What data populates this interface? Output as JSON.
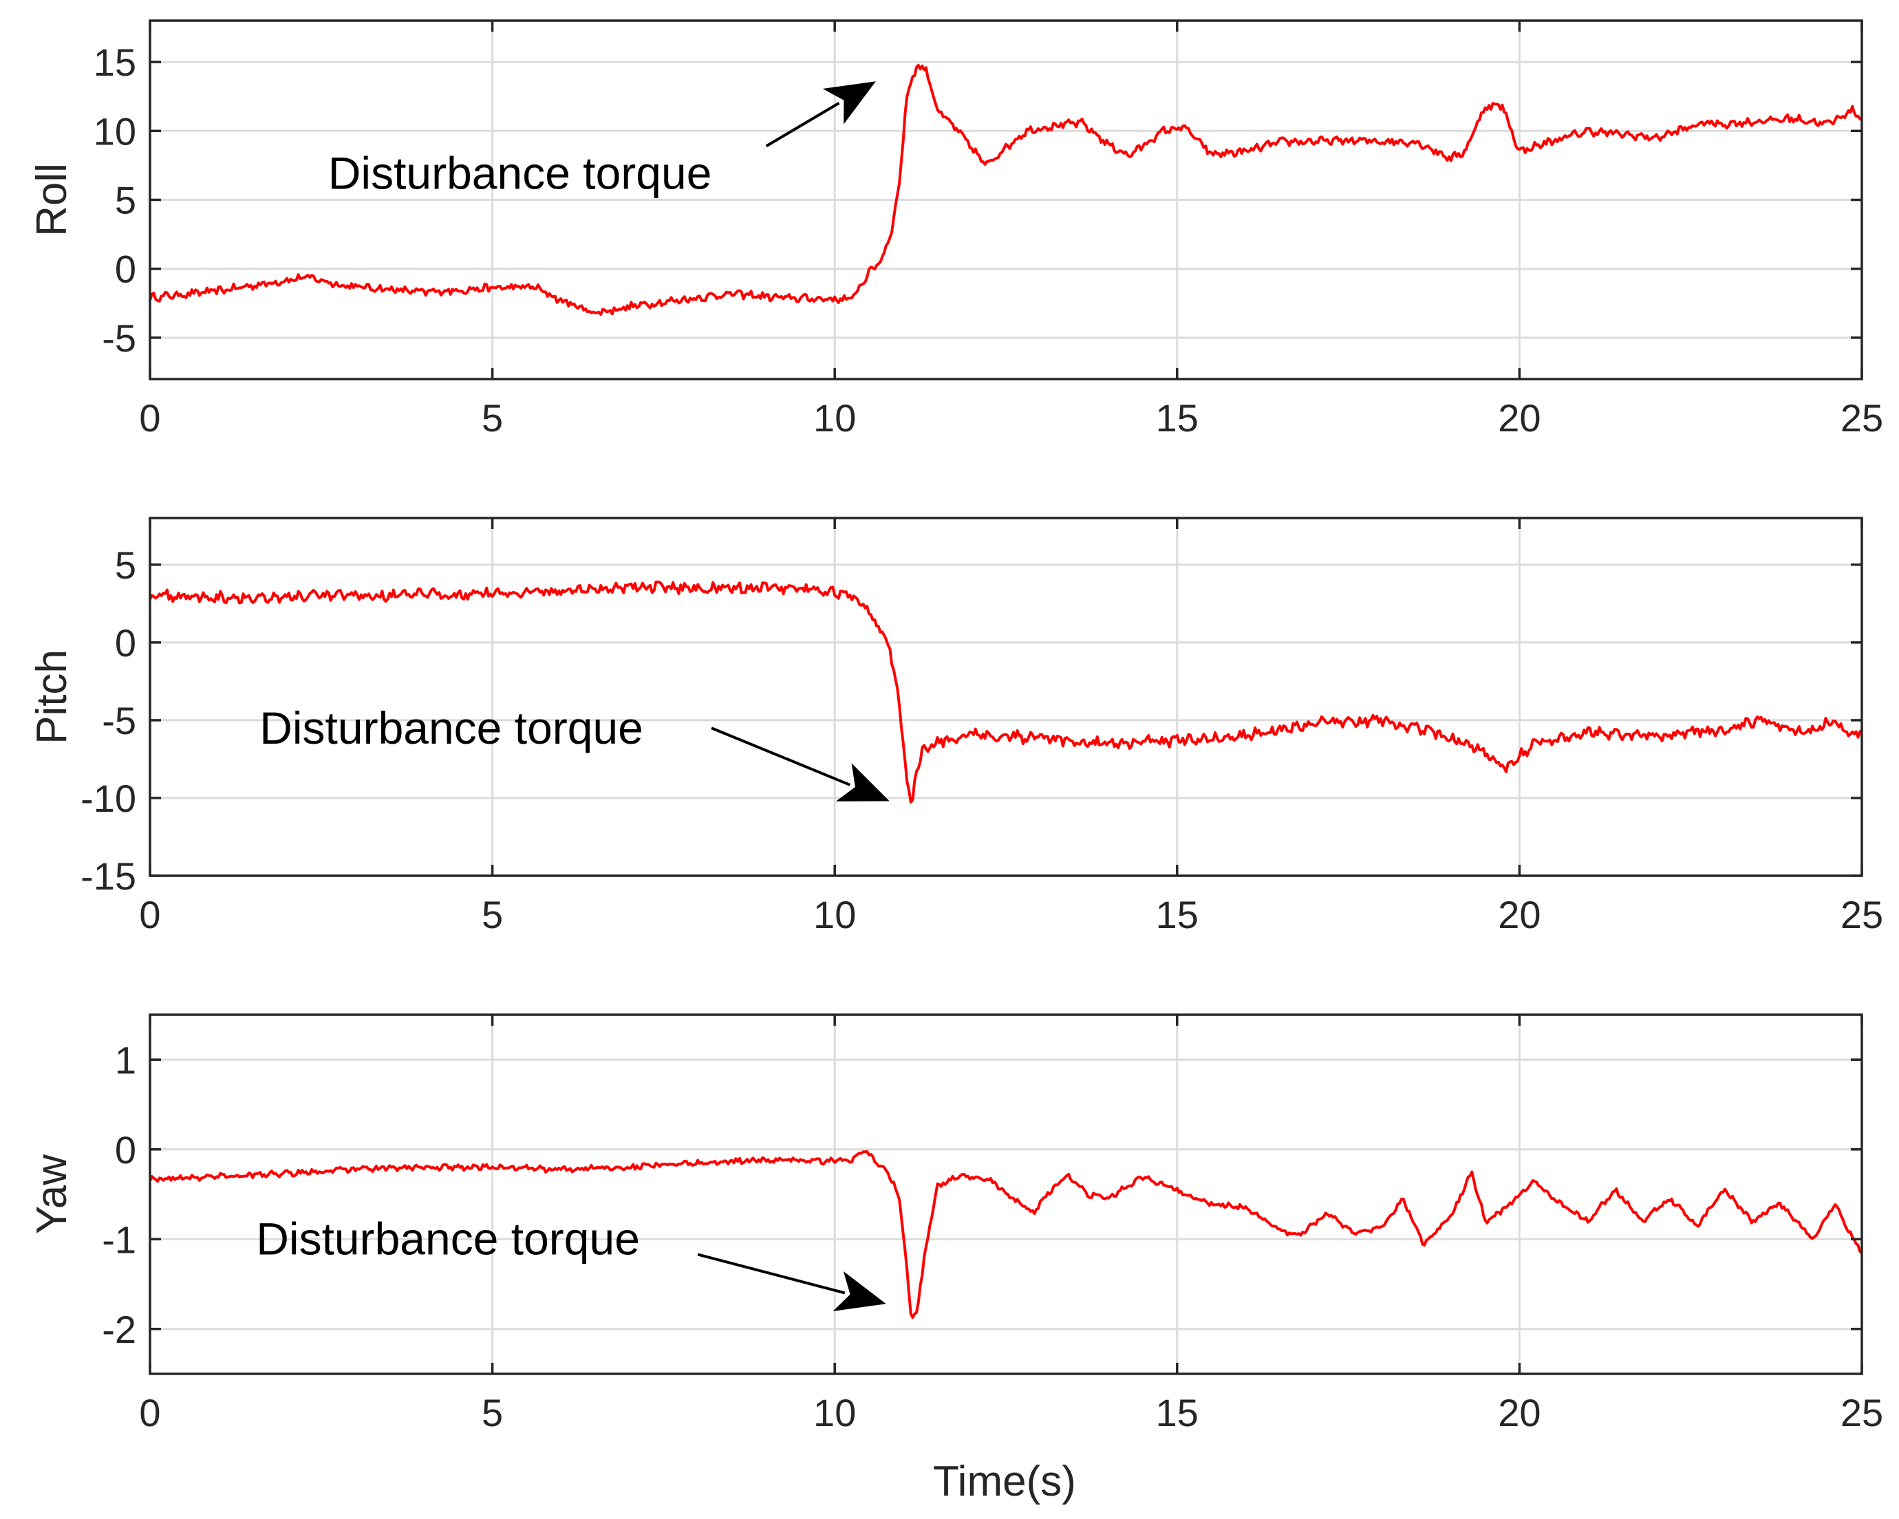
{
  "series_color": "#ff0000",
  "xlabel": "Time(s)",
  "chart_data": [
    {
      "type": "line",
      "ylabel": "Roll",
      "xlim": [
        0,
        25
      ],
      "ylim": [
        -8,
        18
      ],
      "xticks": [
        0,
        5,
        10,
        15,
        20,
        25
      ],
      "yticks": [
        -5,
        0,
        5,
        10,
        15
      ],
      "ytick_labels": [
        "-5",
        "0",
        "5",
        "10",
        "15"
      ],
      "annotation": {
        "text": "Disturbance torque",
        "text_at": [
          2.6,
          5.8
        ],
        "tail": [
          9.0,
          8.9
        ],
        "tip": [
          10.6,
          13.6
        ]
      },
      "series": [
        {
          "name": "Roll",
          "noise": 0.45,
          "points": [
            [
              0,
              -2.1
            ],
            [
              1.0,
              -1.6
            ],
            [
              2.3,
              -0.6
            ],
            [
              2.8,
              -1.2
            ],
            [
              4.0,
              -1.7
            ],
            [
              5.0,
              -1.4
            ],
            [
              5.6,
              -1.3
            ],
            [
              6.0,
              -2.3
            ],
            [
              6.5,
              -3.2
            ],
            [
              7.2,
              -2.6
            ],
            [
              8.5,
              -1.8
            ],
            [
              9.2,
              -2.1
            ],
            [
              10.0,
              -2.2
            ],
            [
              10.25,
              -2.2
            ],
            [
              10.4,
              -1.0
            ],
            [
              10.55,
              0.0
            ],
            [
              10.7,
              0.8
            ],
            [
              10.85,
              3.2
            ],
            [
              10.95,
              6.5
            ],
            [
              11.05,
              12.5
            ],
            [
              11.2,
              14.8
            ],
            [
              11.35,
              14.3
            ],
            [
              11.5,
              11.5
            ],
            [
              11.8,
              10.0
            ],
            [
              12.0,
              8.8
            ],
            [
              12.2,
              7.5
            ],
            [
              12.45,
              8.6
            ],
            [
              12.8,
              10.0
            ],
            [
              13.1,
              10.3
            ],
            [
              13.6,
              10.6
            ],
            [
              14.0,
              9.0
            ],
            [
              14.3,
              8.2
            ],
            [
              14.8,
              10.0
            ],
            [
              15.1,
              10.3
            ],
            [
              15.5,
              8.3
            ],
            [
              16.0,
              8.5
            ],
            [
              16.5,
              9.2
            ],
            [
              17.5,
              9.3
            ],
            [
              18.5,
              9.2
            ],
            [
              19.0,
              8.0
            ],
            [
              19.2,
              8.5
            ],
            [
              19.5,
              11.8
            ],
            [
              19.75,
              11.8
            ],
            [
              20.0,
              8.5
            ],
            [
              20.3,
              9.0
            ],
            [
              21.0,
              10.0
            ],
            [
              22.0,
              9.5
            ],
            [
              22.7,
              10.6
            ],
            [
              23.0,
              10.5
            ],
            [
              24.0,
              10.9
            ],
            [
              24.5,
              10.5
            ],
            [
              24.85,
              11.5
            ],
            [
              25.0,
              10.9
            ]
          ]
        }
      ]
    },
    {
      "type": "line",
      "ylabel": "Pitch",
      "xlim": [
        0,
        25
      ],
      "ylim": [
        -15,
        8
      ],
      "xticks": [
        0,
        5,
        10,
        15,
        20,
        25
      ],
      "yticks": [
        -15,
        -10,
        -5,
        0,
        5
      ],
      "ytick_labels": [
        "-15",
        "-10",
        "-5",
        "0",
        "5"
      ],
      "annotation": {
        "text": "Disturbance torque",
        "text_at": [
          1.6,
          -6.5
        ],
        "tail": [
          8.2,
          -5.5
        ],
        "tip": [
          10.8,
          -10.2
        ]
      },
      "series": [
        {
          "name": "Pitch",
          "noise": 0.55,
          "points": [
            [
              0,
              3.0
            ],
            [
              1.5,
              2.9
            ],
            [
              3.0,
              3.0
            ],
            [
              4.5,
              3.1
            ],
            [
              6.0,
              3.3
            ],
            [
              7.0,
              3.6
            ],
            [
              8.0,
              3.5
            ],
            [
              9.0,
              3.5
            ],
            [
              10.0,
              3.3
            ],
            [
              10.3,
              2.8
            ],
            [
              10.5,
              2.0
            ],
            [
              10.65,
              0.8
            ],
            [
              10.8,
              -0.3
            ],
            [
              10.9,
              -2.5
            ],
            [
              10.98,
              -5.5
            ],
            [
              11.05,
              -8.5
            ],
            [
              11.12,
              -10.5
            ],
            [
              11.2,
              -8.0
            ],
            [
              11.3,
              -6.8
            ],
            [
              11.5,
              -6.5
            ],
            [
              12.0,
              -5.8
            ],
            [
              13.0,
              -6.2
            ],
            [
              14.0,
              -6.5
            ],
            [
              15.0,
              -6.3
            ],
            [
              16.0,
              -6.0
            ],
            [
              17.0,
              -5.2
            ],
            [
              18.0,
              -5.0
            ],
            [
              18.5,
              -5.5
            ],
            [
              19.0,
              -6.2
            ],
            [
              19.5,
              -7.0
            ],
            [
              19.8,
              -8.2
            ],
            [
              20.2,
              -6.5
            ],
            [
              21.0,
              -5.8
            ],
            [
              22.0,
              -6.0
            ],
            [
              23.0,
              -5.6
            ],
            [
              23.5,
              -5.0
            ],
            [
              24.2,
              -5.8
            ],
            [
              24.6,
              -5.0
            ],
            [
              24.8,
              -6.0
            ],
            [
              25.0,
              -5.8
            ]
          ]
        }
      ]
    },
    {
      "type": "line",
      "ylabel": "Yaw",
      "xlim": [
        0,
        25
      ],
      "ylim": [
        -2.5,
        1.5
      ],
      "xticks": [
        0,
        5,
        10,
        15,
        20,
        25
      ],
      "yticks": [
        -2,
        -1,
        0,
        1
      ],
      "ytick_labels": [
        "-2",
        "-1",
        "0",
        "1"
      ],
      "annotation": {
        "text": "Disturbance torque",
        "text_at": [
          1.55,
          -1.17
        ],
        "tail": [
          8.0,
          -1.17
        ],
        "tip": [
          10.75,
          -1.72
        ]
      },
      "series": [
        {
          "name": "Yaw",
          "noise": 0.05,
          "points": [
            [
              0,
              -0.33
            ],
            [
              1.0,
              -0.3
            ],
            [
              2.0,
              -0.27
            ],
            [
              3.0,
              -0.22
            ],
            [
              4.0,
              -0.2
            ],
            [
              5.0,
              -0.2
            ],
            [
              6.0,
              -0.22
            ],
            [
              7.0,
              -0.2
            ],
            [
              8.0,
              -0.15
            ],
            [
              9.0,
              -0.12
            ],
            [
              10.0,
              -0.13
            ],
            [
              10.3,
              -0.1
            ],
            [
              10.45,
              0.0
            ],
            [
              10.6,
              -0.15
            ],
            [
              10.75,
              -0.25
            ],
            [
              10.85,
              -0.35
            ],
            [
              10.95,
              -0.6
            ],
            [
              11.05,
              -1.3
            ],
            [
              11.12,
              -1.9
            ],
            [
              11.2,
              -1.8
            ],
            [
              11.35,
              -1.0
            ],
            [
              11.5,
              -0.4
            ],
            [
              11.8,
              -0.3
            ],
            [
              12.3,
              -0.35
            ],
            [
              12.6,
              -0.55
            ],
            [
              12.9,
              -0.7
            ],
            [
              13.1,
              -0.5
            ],
            [
              13.4,
              -0.3
            ],
            [
              13.7,
              -0.5
            ],
            [
              14.0,
              -0.55
            ],
            [
              14.5,
              -0.3
            ],
            [
              15.0,
              -0.45
            ],
            [
              15.5,
              -0.6
            ],
            [
              16.0,
              -0.65
            ],
            [
              16.5,
              -0.9
            ],
            [
              16.8,
              -0.95
            ],
            [
              17.2,
              -0.7
            ],
            [
              17.6,
              -0.95
            ],
            [
              18.0,
              -0.85
            ],
            [
              18.3,
              -0.55
            ],
            [
              18.6,
              -1.05
            ],
            [
              19.0,
              -0.75
            ],
            [
              19.3,
              -0.25
            ],
            [
              19.5,
              -0.8
            ],
            [
              19.8,
              -0.65
            ],
            [
              20.2,
              -0.35
            ],
            [
              20.6,
              -0.6
            ],
            [
              21.0,
              -0.8
            ],
            [
              21.4,
              -0.45
            ],
            [
              21.8,
              -0.8
            ],
            [
              22.2,
              -0.55
            ],
            [
              22.6,
              -0.85
            ],
            [
              23.0,
              -0.45
            ],
            [
              23.4,
              -0.8
            ],
            [
              23.8,
              -0.6
            ],
            [
              24.3,
              -1.0
            ],
            [
              24.6,
              -0.6
            ],
            [
              24.8,
              -0.9
            ],
            [
              25.0,
              -1.15
            ]
          ]
        }
      ]
    }
  ]
}
